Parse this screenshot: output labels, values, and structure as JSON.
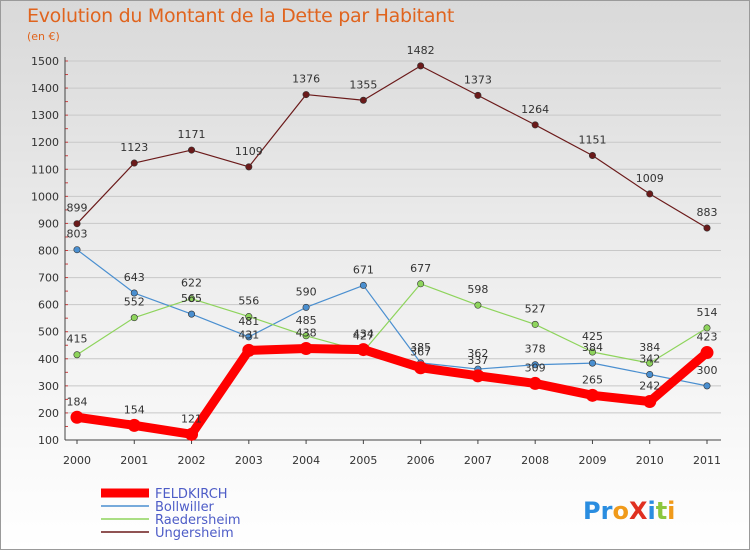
{
  "header": {
    "title": "Evolution du Montant de la Dette par Habitant",
    "subtitle": "(en €)"
  },
  "logo": {
    "text": "ProXiti"
  },
  "colors": {
    "title": "#e0641e",
    "legend_text": "#4d5cc7",
    "FELDKIRCH": "#ff0000",
    "Bollwiller": "#4a8fd0",
    "Raedersheim": "#8ed45c",
    "Ungersheim": "#6b1a1a"
  },
  "chart_data": {
    "type": "line",
    "title": "Evolution du Montant de la Dette par Habitant",
    "ylabel": "(en €)",
    "xlabel": "",
    "x": [
      "2000",
      "2001",
      "2002",
      "2003",
      "2004",
      "2005",
      "2006",
      "2007",
      "2008",
      "2009",
      "2010",
      "2011"
    ],
    "ylim": [
      100,
      1500
    ],
    "yticks": [
      100,
      200,
      300,
      400,
      500,
      600,
      700,
      800,
      900,
      1000,
      1100,
      1200,
      1300,
      1400,
      1500
    ],
    "grid": "horizontal",
    "legend_position": "bottom-left",
    "series": [
      {
        "name": "FELDKIRCH",
        "values": [
          184,
          154,
          121,
          431,
          438,
          434,
          367,
          337,
          309,
          265,
          242,
          423
        ]
      },
      {
        "name": "Bollwiller",
        "values": [
          803,
          643,
          565,
          481,
          590,
          671,
          385,
          362,
          378,
          384,
          342,
          300
        ]
      },
      {
        "name": "Raedersheim",
        "values": [
          415,
          552,
          622,
          556,
          485,
          427,
          677,
          598,
          527,
          425,
          384,
          514
        ]
      },
      {
        "name": "Ungersheim",
        "values": [
          899,
          1123,
          1171,
          1109,
          1376,
          1355,
          1482,
          1373,
          1264,
          1151,
          1009,
          883
        ]
      }
    ]
  }
}
